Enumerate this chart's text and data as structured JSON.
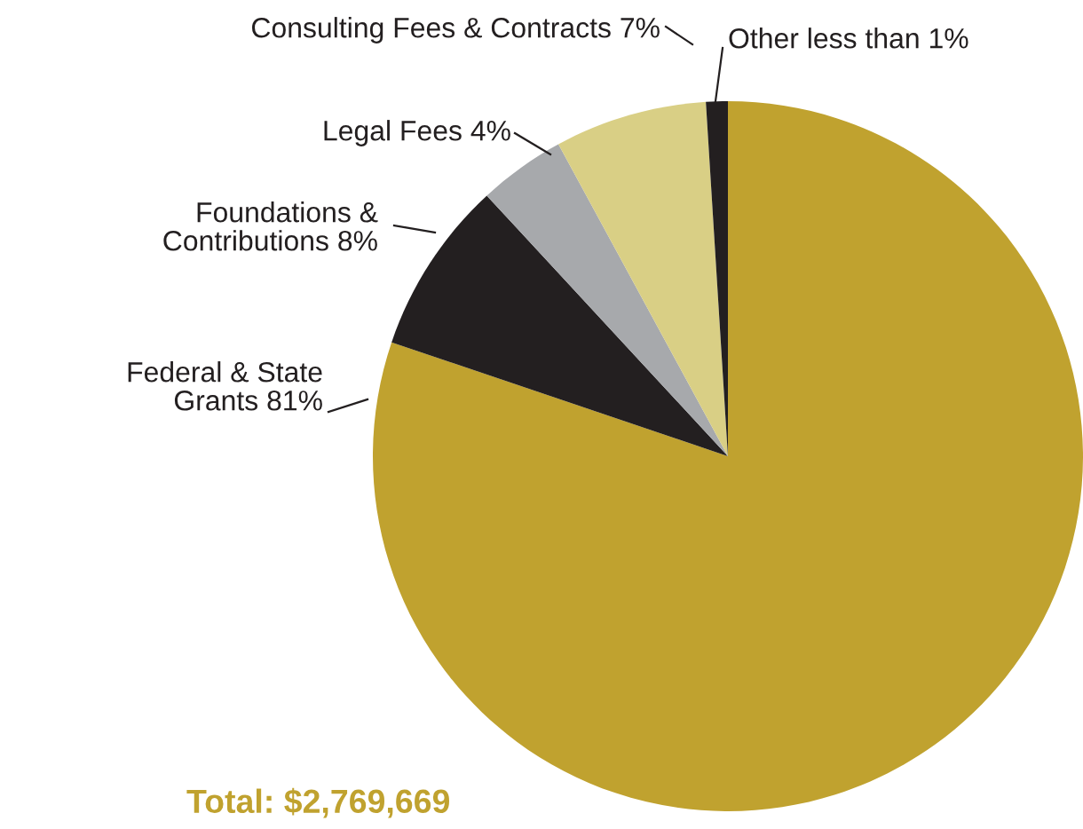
{
  "chart_data": {
    "type": "pie",
    "categories": [
      "Federal & State\nGrants",
      "Foundations &\nContributions",
      "Legal Fees",
      "Consulting Fees & Contracts",
      "Other"
    ],
    "values": [
      81,
      8,
      4,
      7,
      1
    ],
    "value_labels": [
      "81%",
      "8%",
      "4%",
      "7%",
      "less than 1%"
    ],
    "colors": [
      "#c0a22f",
      "#231f20",
      "#a7a9ac",
      "#d9cf85",
      "#231f20"
    ],
    "annotations": [
      "Total: $2,769,669"
    ]
  }
}
